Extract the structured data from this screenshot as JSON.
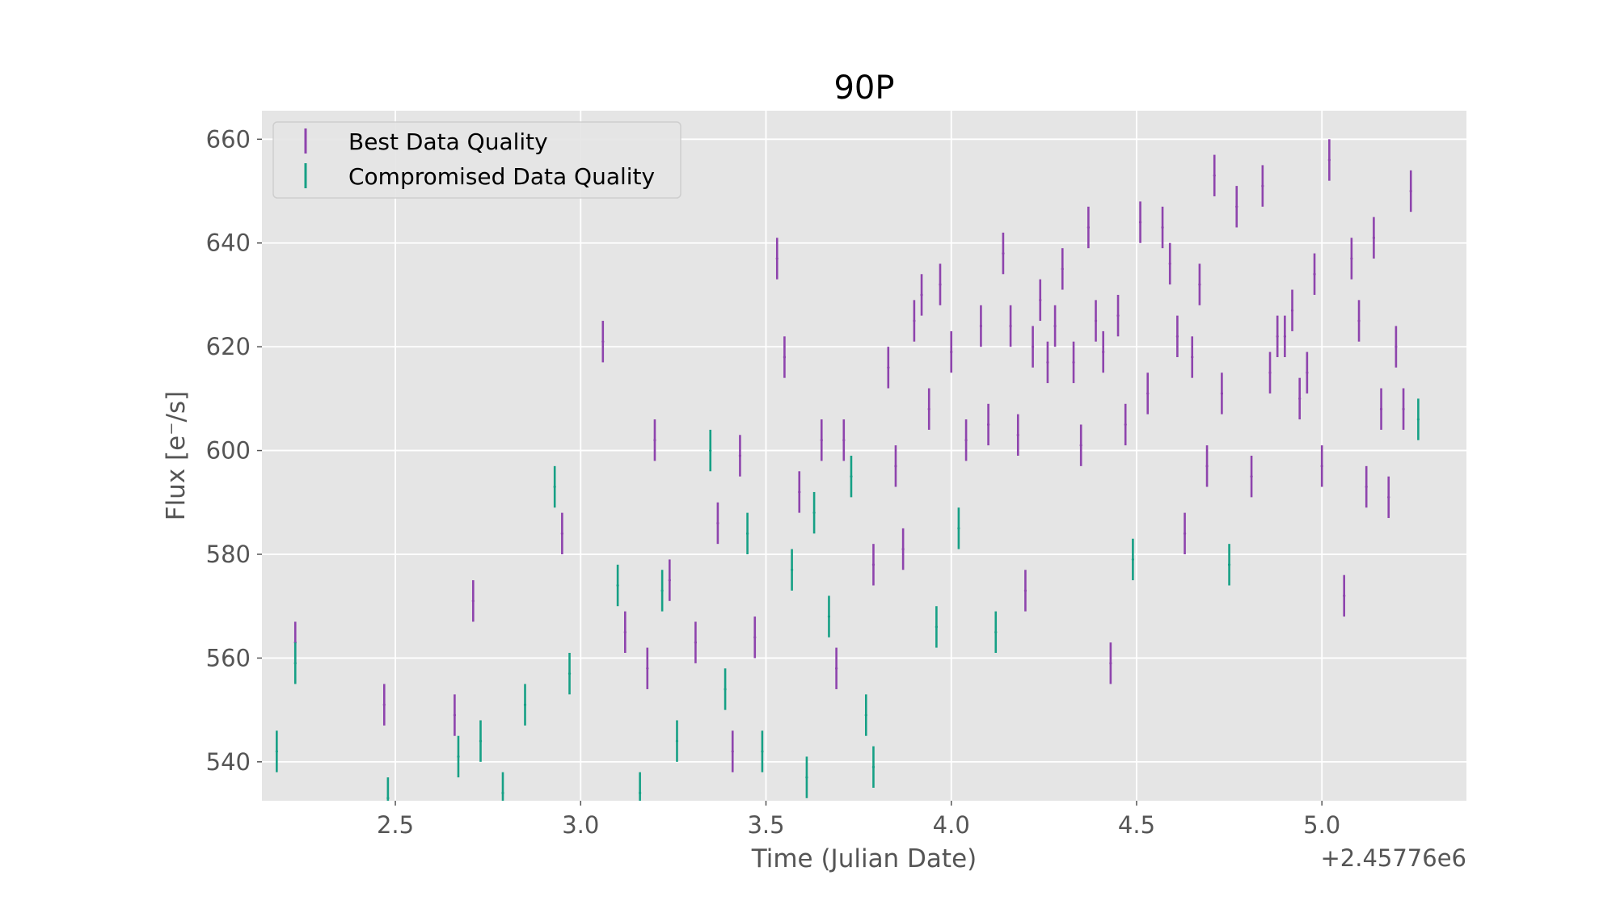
{
  "chart_data": {
    "type": "scatter",
    "title": "90P",
    "xlabel": "Time (Julian Date)",
    "ylabel": "Flux [e⁻/s]",
    "x_offset_label": "+2.45776e6",
    "xlim": [
      2.14,
      5.39
    ],
    "ylim": [
      532.5,
      665.5
    ],
    "x_ticks": [
      2.5,
      3.0,
      3.5,
      4.0,
      4.5,
      5.0
    ],
    "x_tick_labels": [
      "2.5",
      "3.0",
      "3.5",
      "4.0",
      "4.5",
      "5.0"
    ],
    "y_ticks": [
      540,
      560,
      580,
      600,
      620,
      640,
      660
    ],
    "y_tick_labels": [
      "540",
      "560",
      "580",
      "600",
      "620",
      "640",
      "660"
    ],
    "grid": true,
    "legend_position": "top-left",
    "error_bar": 4,
    "series": [
      {
        "name": "Best Data Quality",
        "color": "#8e44ad",
        "points": [
          [
            2.23,
            563
          ],
          [
            2.47,
            551
          ],
          [
            2.66,
            549
          ],
          [
            2.71,
            571
          ],
          [
            2.95,
            584
          ],
          [
            3.06,
            621
          ],
          [
            3.12,
            565
          ],
          [
            3.18,
            558
          ],
          [
            3.2,
            602
          ],
          [
            3.24,
            575
          ],
          [
            3.31,
            563
          ],
          [
            3.37,
            586
          ],
          [
            3.41,
            542
          ],
          [
            3.43,
            599
          ],
          [
            3.47,
            564
          ],
          [
            3.53,
            637
          ],
          [
            3.55,
            618
          ],
          [
            3.59,
            592
          ],
          [
            3.65,
            602
          ],
          [
            3.69,
            558
          ],
          [
            3.71,
            602
          ],
          [
            3.79,
            578
          ],
          [
            3.83,
            616
          ],
          [
            3.85,
            597
          ],
          [
            3.87,
            581
          ],
          [
            3.9,
            625
          ],
          [
            3.92,
            630
          ],
          [
            3.94,
            608
          ],
          [
            3.97,
            632
          ],
          [
            4.0,
            619
          ],
          [
            4.04,
            602
          ],
          [
            4.08,
            624
          ],
          [
            4.1,
            605
          ],
          [
            4.14,
            638
          ],
          [
            4.16,
            624
          ],
          [
            4.18,
            603
          ],
          [
            4.2,
            573
          ],
          [
            4.22,
            620
          ],
          [
            4.24,
            629
          ],
          [
            4.26,
            617
          ],
          [
            4.28,
            624
          ],
          [
            4.3,
            635
          ],
          [
            4.33,
            617
          ],
          [
            4.35,
            601
          ],
          [
            4.37,
            643
          ],
          [
            4.39,
            625
          ],
          [
            4.41,
            619
          ],
          [
            4.43,
            559
          ],
          [
            4.45,
            626
          ],
          [
            4.47,
            605
          ],
          [
            4.51,
            644
          ],
          [
            4.53,
            611
          ],
          [
            4.57,
            643
          ],
          [
            4.59,
            636
          ],
          [
            4.61,
            622
          ],
          [
            4.63,
            584
          ],
          [
            4.65,
            618
          ],
          [
            4.67,
            632
          ],
          [
            4.69,
            597
          ],
          [
            4.71,
            653
          ],
          [
            4.73,
            611
          ],
          [
            4.77,
            647
          ],
          [
            4.81,
            595
          ],
          [
            4.84,
            651
          ],
          [
            4.86,
            615
          ],
          [
            4.88,
            622
          ],
          [
            4.9,
            622
          ],
          [
            4.92,
            627
          ],
          [
            4.94,
            610
          ],
          [
            4.96,
            615
          ],
          [
            4.98,
            634
          ],
          [
            5.0,
            597
          ],
          [
            5.02,
            656
          ],
          [
            5.06,
            572
          ],
          [
            5.08,
            637
          ],
          [
            5.1,
            625
          ],
          [
            5.12,
            593
          ],
          [
            5.14,
            641
          ],
          [
            5.16,
            608
          ],
          [
            5.18,
            591
          ],
          [
            5.2,
            620
          ],
          [
            5.22,
            608
          ],
          [
            5.24,
            650
          ]
        ]
      },
      {
        "name": "Compromised Data Quality",
        "color": "#16a085",
        "points": [
          [
            2.18,
            542
          ],
          [
            2.23,
            559
          ],
          [
            2.48,
            533
          ],
          [
            2.67,
            541
          ],
          [
            2.73,
            544
          ],
          [
            2.79,
            534
          ],
          [
            2.85,
            551
          ],
          [
            2.93,
            593
          ],
          [
            2.97,
            557
          ],
          [
            3.1,
            574
          ],
          [
            3.16,
            534
          ],
          [
            3.22,
            573
          ],
          [
            3.26,
            544
          ],
          [
            3.35,
            600
          ],
          [
            3.39,
            554
          ],
          [
            3.45,
            584
          ],
          [
            3.49,
            542
          ],
          [
            3.57,
            577
          ],
          [
            3.61,
            537
          ],
          [
            3.63,
            588
          ],
          [
            3.67,
            568
          ],
          [
            3.73,
            595
          ],
          [
            3.77,
            549
          ],
          [
            3.79,
            539
          ],
          [
            3.96,
            566
          ],
          [
            4.02,
            585
          ],
          [
            4.12,
            565
          ],
          [
            4.49,
            579
          ],
          [
            4.75,
            578
          ],
          [
            5.26,
            606
          ]
        ]
      }
    ]
  }
}
